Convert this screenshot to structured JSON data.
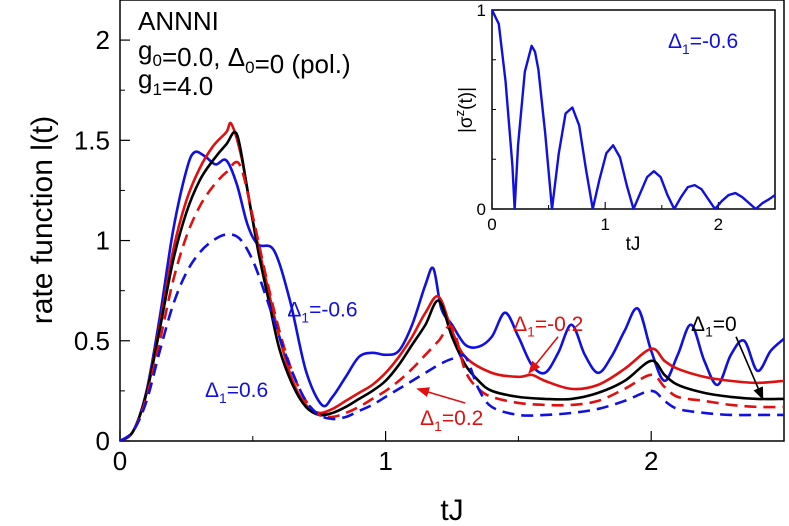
{
  "chart_data": [
    {
      "type": "line",
      "title": "",
      "xlabel": "tJ",
      "ylabel": "rate function l(t)",
      "xlim": [
        0,
        2.5
      ],
      "ylim": [
        0,
        2.2
      ],
      "xticks": [
        0,
        1,
        2
      ],
      "xtick_labels": [
        "0",
        "1",
        "2"
      ],
      "yticks": [
        0,
        0.5,
        1,
        1.5,
        2
      ],
      "ytick_labels": [
        "0",
        "0.5",
        "1",
        "1.5",
        "2"
      ],
      "grid": false,
      "header_lines": [
        {
          "parts": [
            {
              "t": "ANNNI"
            }
          ]
        },
        {
          "parts": [
            {
              "t": "g"
            },
            {
              "t": "0",
              "sub": true
            },
            {
              "t": "=0.0, Δ"
            },
            {
              "t": "0",
              "sub": true
            },
            {
              "t": "=0 (pol.)"
            }
          ]
        },
        {
          "parts": [
            {
              "t": "g"
            },
            {
              "t": "1",
              "sub": true
            },
            {
              "t": "=4.0"
            }
          ]
        }
      ],
      "series": [
        {
          "name": "Δ1=-0.6",
          "color": "#1010e0",
          "dash": "solid",
          "x": [
            0,
            0.05,
            0.1,
            0.15,
            0.2,
            0.25,
            0.28,
            0.32,
            0.36,
            0.4,
            0.44,
            0.48,
            0.52,
            0.58,
            0.64,
            0.7,
            0.76,
            0.8,
            0.85,
            0.9,
            0.95,
            1.0,
            1.05,
            1.1,
            1.15,
            1.18,
            1.21,
            1.25,
            1.3,
            1.35,
            1.4,
            1.45,
            1.5,
            1.55,
            1.6,
            1.65,
            1.7,
            1.75,
            1.8,
            1.85,
            1.9,
            1.95,
            2.0,
            2.05,
            2.1,
            2.15,
            2.2,
            2.25,
            2.3,
            2.35,
            2.4,
            2.45,
            2.5
          ],
          "y": [
            0,
            0.05,
            0.25,
            0.62,
            1.05,
            1.35,
            1.44,
            1.42,
            1.38,
            1.4,
            1.28,
            1.08,
            0.98,
            0.95,
            0.7,
            0.35,
            0.18,
            0.22,
            0.32,
            0.42,
            0.44,
            0.43,
            0.45,
            0.58,
            0.78,
            0.86,
            0.66,
            0.58,
            0.48,
            0.47,
            0.52,
            0.64,
            0.52,
            0.38,
            0.34,
            0.44,
            0.58,
            0.43,
            0.34,
            0.42,
            0.55,
            0.66,
            0.45,
            0.3,
            0.43,
            0.58,
            0.4,
            0.28,
            0.43,
            0.5,
            0.35,
            0.45,
            0.51
          ]
        },
        {
          "name": "Δ1=-0.2",
          "color": "#e01010",
          "dash": "solid",
          "x": [
            0,
            0.05,
            0.1,
            0.15,
            0.2,
            0.25,
            0.3,
            0.35,
            0.4,
            0.42,
            0.46,
            0.5,
            0.55,
            0.6,
            0.65,
            0.7,
            0.75,
            0.8,
            0.85,
            0.9,
            0.95,
            1.0,
            1.05,
            1.1,
            1.15,
            1.2,
            1.25,
            1.3,
            1.4,
            1.5,
            1.55,
            1.6,
            1.7,
            1.8,
            1.9,
            2.0,
            2.05,
            2.1,
            2.2,
            2.3,
            2.4,
            2.5
          ],
          "y": [
            0,
            0.05,
            0.24,
            0.58,
            0.95,
            1.2,
            1.36,
            1.47,
            1.54,
            1.58,
            1.4,
            1.1,
            0.8,
            0.52,
            0.3,
            0.18,
            0.14,
            0.16,
            0.2,
            0.24,
            0.28,
            0.34,
            0.42,
            0.52,
            0.64,
            0.72,
            0.55,
            0.42,
            0.34,
            0.32,
            0.33,
            0.3,
            0.26,
            0.28,
            0.36,
            0.46,
            0.4,
            0.36,
            0.32,
            0.3,
            0.29,
            0.3
          ]
        },
        {
          "name": "Δ1=0",
          "color": "#000000",
          "dash": "solid",
          "x": [
            0,
            0.05,
            0.1,
            0.15,
            0.2,
            0.25,
            0.3,
            0.35,
            0.4,
            0.44,
            0.48,
            0.52,
            0.56,
            0.6,
            0.65,
            0.7,
            0.75,
            0.8,
            0.85,
            0.9,
            0.95,
            1.0,
            1.05,
            1.1,
            1.15,
            1.2,
            1.25,
            1.3,
            1.35,
            1.4,
            1.5,
            1.6,
            1.7,
            1.8,
            1.9,
            2.0,
            2.05,
            2.1,
            2.2,
            2.3,
            2.4,
            2.5
          ],
          "y": [
            0,
            0.05,
            0.24,
            0.56,
            0.9,
            1.14,
            1.3,
            1.4,
            1.48,
            1.53,
            1.25,
            0.95,
            0.7,
            0.46,
            0.28,
            0.17,
            0.13,
            0.14,
            0.17,
            0.21,
            0.25,
            0.3,
            0.38,
            0.48,
            0.58,
            0.7,
            0.52,
            0.38,
            0.3,
            0.25,
            0.22,
            0.21,
            0.21,
            0.24,
            0.3,
            0.4,
            0.33,
            0.28,
            0.24,
            0.22,
            0.21,
            0.21
          ]
        },
        {
          "name": "Δ1=0.2",
          "color": "#e01010",
          "dash": "dashed",
          "x": [
            0,
            0.05,
            0.1,
            0.15,
            0.2,
            0.25,
            0.3,
            0.35,
            0.4,
            0.45,
            0.5,
            0.55,
            0.6,
            0.65,
            0.7,
            0.75,
            0.8,
            0.85,
            0.9,
            0.95,
            1.0,
            1.05,
            1.1,
            1.15,
            1.2,
            1.25,
            1.3,
            1.35,
            1.4,
            1.5,
            1.6,
            1.7,
            1.8,
            1.9,
            2.0,
            2.05,
            2.1,
            2.2,
            2.3,
            2.4,
            2.5
          ],
          "y": [
            0,
            0.05,
            0.22,
            0.5,
            0.8,
            1.02,
            1.17,
            1.27,
            1.34,
            1.38,
            1.12,
            0.82,
            0.55,
            0.34,
            0.2,
            0.13,
            0.12,
            0.14,
            0.17,
            0.21,
            0.25,
            0.3,
            0.36,
            0.43,
            0.5,
            0.57,
            0.35,
            0.26,
            0.22,
            0.19,
            0.18,
            0.18,
            0.2,
            0.26,
            0.33,
            0.27,
            0.22,
            0.2,
            0.18,
            0.17,
            0.17
          ]
        },
        {
          "name": "Δ1=0.6",
          "color": "#1010e0",
          "dash": "dashed",
          "x": [
            0,
            0.05,
            0.1,
            0.15,
            0.2,
            0.25,
            0.3,
            0.35,
            0.4,
            0.45,
            0.5,
            0.55,
            0.6,
            0.65,
            0.7,
            0.75,
            0.8,
            0.85,
            0.9,
            0.95,
            1.0,
            1.05,
            1.1,
            1.15,
            1.2,
            1.25,
            1.3,
            1.35,
            1.4,
            1.5,
            1.6,
            1.7,
            1.8,
            1.9,
            2.0,
            2.05,
            2.1,
            2.2,
            2.3,
            2.4,
            2.5
          ],
          "y": [
            0,
            0.05,
            0.2,
            0.45,
            0.68,
            0.84,
            0.94,
            1.0,
            1.03,
            1.01,
            0.9,
            0.72,
            0.52,
            0.34,
            0.2,
            0.13,
            0.11,
            0.12,
            0.15,
            0.18,
            0.22,
            0.26,
            0.3,
            0.34,
            0.38,
            0.41,
            0.42,
            0.26,
            0.17,
            0.13,
            0.13,
            0.14,
            0.16,
            0.2,
            0.25,
            0.2,
            0.16,
            0.14,
            0.13,
            0.13,
            0.13
          ]
        }
      ],
      "annotations": [
        {
          "name": "annotation-delta1-minus06",
          "label": "Δ1=-0.6",
          "sym": "Δ",
          "sub": "1",
          "rest": "=-0.6",
          "color": "#1010e0",
          "at": [
            0.63,
            0.62
          ],
          "arrow": false
        },
        {
          "name": "annotation-delta1-06",
          "label": "Δ1=0.6",
          "sym": "Δ",
          "sub": "1",
          "rest": "=0.6",
          "color": "#1010e0",
          "at": [
            0.32,
            0.22
          ],
          "arrow": false
        },
        {
          "name": "annotation-delta1-minus02",
          "label": "Δ1=-0.2",
          "sym": "Δ",
          "sub": "1",
          "rest": "=-0.2",
          "color": "#e01010",
          "at": [
            1.48,
            0.55
          ],
          "arrow": true,
          "arrow_to": [
            1.54,
            0.34
          ]
        },
        {
          "name": "annotation-delta1-02",
          "label": "Δ1=0.2",
          "sym": "Δ",
          "sub": "1",
          "rest": "=0.2",
          "color": "#e01010",
          "at": [
            1.13,
            0.08
          ],
          "arrow": true,
          "arrow_to": [
            1.12,
            0.26
          ]
        },
        {
          "name": "annotation-delta1-0",
          "label": "Δ1=0",
          "sym": "Δ",
          "sub": "1",
          "rest": "=0",
          "color": "#000000",
          "at": [
            2.15,
            0.55
          ],
          "arrow": true,
          "arrow_to": [
            2.42,
            0.21
          ]
        }
      ]
    },
    {
      "type": "line",
      "title": "",
      "xlabel": "tJ",
      "ylabel": "|σ^z(t)|",
      "xlim": [
        0,
        2.5
      ],
      "ylim": [
        0,
        1
      ],
      "xticks": [
        0,
        1,
        2
      ],
      "xtick_labels": [
        "0",
        "1",
        "2"
      ],
      "yticks": [
        0,
        1
      ],
      "ytick_labels": [
        "0",
        "1"
      ],
      "legend": {
        "label": "Δ1=-0.6",
        "sym": "Δ",
        "sub": "1",
        "rest": "=-0.6",
        "color": "#1010e0",
        "position": "top-right"
      },
      "series": [
        {
          "name": "|σz(t)| Δ1=-0.6",
          "color": "#1010e0",
          "x": [
            0,
            0.06,
            0.12,
            0.18,
            0.2,
            0.23,
            0.29,
            0.35,
            0.38,
            0.41,
            0.47,
            0.53,
            0.59,
            0.65,
            0.71,
            0.77,
            0.83,
            0.89,
            0.95,
            1.01,
            1.07,
            1.13,
            1.19,
            1.25,
            1.31,
            1.37,
            1.43,
            1.49,
            1.55,
            1.61,
            1.67,
            1.73,
            1.79,
            1.85,
            1.91,
            1.97,
            2.03,
            2.09,
            2.15,
            2.21,
            2.27,
            2.33,
            2.39,
            2.45,
            2.5
          ],
          "y": [
            1,
            0.93,
            0.64,
            0.22,
            0.0,
            0.32,
            0.69,
            0.82,
            0.79,
            0.7,
            0.38,
            0.0,
            0.28,
            0.48,
            0.51,
            0.42,
            0.2,
            0.0,
            0.15,
            0.28,
            0.32,
            0.26,
            0.12,
            0.0,
            0.08,
            0.16,
            0.19,
            0.16,
            0.07,
            0.0,
            0.06,
            0.11,
            0.12,
            0.1,
            0.05,
            0.0,
            0.04,
            0.07,
            0.08,
            0.06,
            0.03,
            0.0,
            0.03,
            0.05,
            0.07
          ]
        }
      ]
    }
  ]
}
